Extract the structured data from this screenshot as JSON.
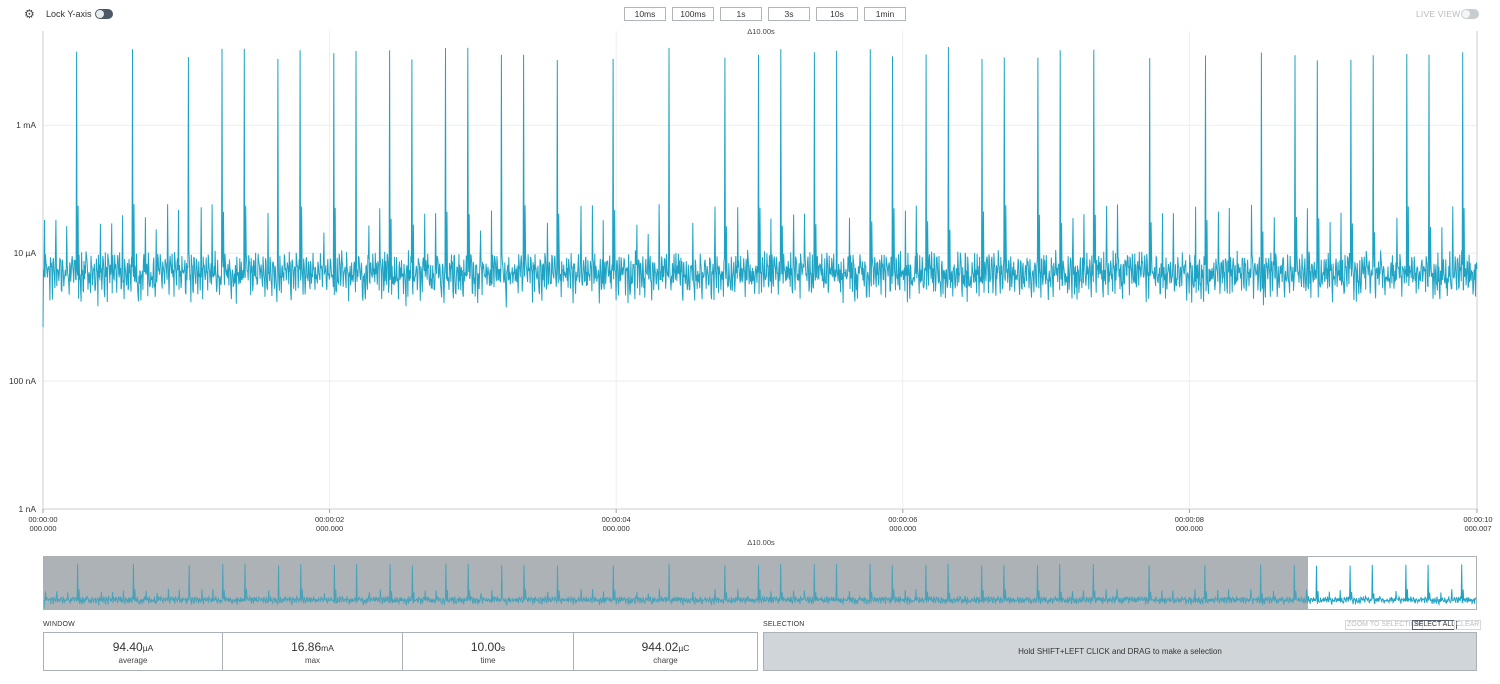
{
  "toolbar": {
    "settings_icon": "gear-icon",
    "lock_y_axis_label": "Lock Y-axis",
    "lock_y_axis_enabled": false,
    "window_buttons": [
      "10ms",
      "100ms",
      "1s",
      "3s",
      "10s",
      "1min"
    ],
    "live_view_label": "LIVE VIEW",
    "live_view_enabled": false
  },
  "main_chart": {
    "delta_label": "Δ10.00s"
  },
  "minimap": {
    "delta_label": "Δ10.00s"
  },
  "chart_data": {
    "type": "line",
    "title": "",
    "xlabel": "",
    "ylabel": "",
    "y_scale": "log",
    "ylim_amps": [
      1e-09,
      0.03
    ],
    "y_ticks": [
      "1 mA",
      "10 µA",
      "100 nA",
      "1 nA"
    ],
    "x_ticks": [
      {
        "time": "00:00:00",
        "sub": "000.000"
      },
      {
        "time": "00:00:02",
        "sub": "000.000"
      },
      {
        "time": "00:00:04",
        "sub": "000.000"
      },
      {
        "time": "00:00:06",
        "sub": "000.000"
      },
      {
        "time": "00:00:08",
        "sub": "000.000"
      },
      {
        "time": "00:00:10",
        "sub": "000.007"
      }
    ],
    "xlim_seconds": [
      0,
      10.007
    ],
    "grid": true,
    "line_color": "#1fa3c4",
    "series": [
      {
        "name": "",
        "baseline_amps": [
          5e-06,
          3e-06,
          2e-06
        ],
        "secondary_peak_amps": 5e-05,
        "spike_peak_amps": 0.0148,
        "spike_max_amps": 0.01686,
        "spike_period_seconds": 0.078
      }
    ]
  },
  "window_stats": {
    "section_label": "WINDOW",
    "items": [
      {
        "value": "94.40",
        "unit": "µA",
        "label": "average"
      },
      {
        "value": "16.86",
        "unit": "mA",
        "label": "max"
      },
      {
        "value": "10.00",
        "unit": "s",
        "label": "time"
      },
      {
        "value": "944.02",
        "unit": "µC",
        "label": "charge"
      }
    ]
  },
  "selection": {
    "section_label": "SELECTION",
    "buttons": [
      "ZOOM TO SELECTION",
      "SELECT ALL",
      "CLEAR"
    ],
    "hint": "Hold SHIFT+LEFT CLICK and DRAG to make a selection"
  }
}
